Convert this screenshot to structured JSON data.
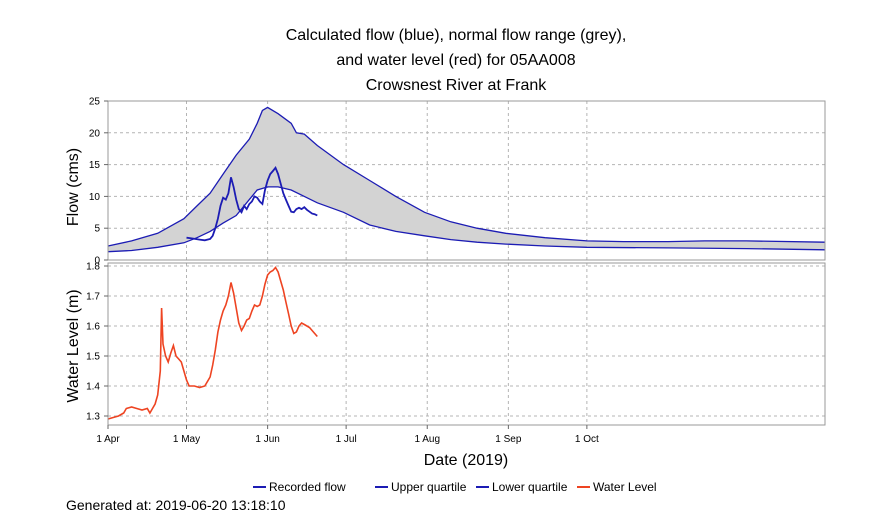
{
  "chart_data": [
    {
      "type": "area",
      "panel": "flow",
      "title_lines": [
        "Calculated flow (blue), normal flow range (grey),",
        "and water level (red) for 05AA008",
        "Crowsnest River at Frank"
      ],
      "xlabel": "Date (2019)",
      "ylabel": "Flow (cms)",
      "xlim": [
        "2019-04-01",
        "2019-12-31"
      ],
      "x_ticks": [
        "2019-04-01",
        "2019-05-01",
        "2019-06-01",
        "2019-07-01",
        "2019-08-01",
        "2019-09-01",
        "2019-10-01"
      ],
      "x_tick_labels": [
        "1 Apr",
        "1 May",
        "1 Jun",
        "1 Jul",
        "1 Aug",
        "1 Sep",
        "1 Oct"
      ],
      "ylim": [
        0,
        25
      ],
      "y_ticks": [
        0,
        5,
        10,
        15,
        20,
        25
      ],
      "grid": true,
      "legend_position": "bottom",
      "band_color": "#d3d3d3",
      "series": [
        {
          "name": "Upper quartile",
          "color": "#1c1cb4",
          "points": [
            [
              "2019-04-01",
              2.2
            ],
            [
              "2019-04-10",
              3.0
            ],
            [
              "2019-04-20",
              4.2
            ],
            [
              "2019-04-30",
              6.5
            ],
            [
              "2019-05-05",
              8.5
            ],
            [
              "2019-05-10",
              10.5
            ],
            [
              "2019-05-15",
              13.5
            ],
            [
              "2019-05-20",
              16.5
            ],
            [
              "2019-05-25",
              19.0
            ],
            [
              "2019-05-28",
              21.5
            ],
            [
              "2019-05-30",
              23.5
            ],
            [
              "2019-06-01",
              24.0
            ],
            [
              "2019-06-05",
              23.0
            ],
            [
              "2019-06-10",
              21.5
            ],
            [
              "2019-06-12",
              20.0
            ],
            [
              "2019-06-15",
              19.8
            ],
            [
              "2019-06-20",
              18.0
            ],
            [
              "2019-06-30",
              15.0
            ],
            [
              "2019-07-10",
              12.5
            ],
            [
              "2019-07-20",
              10.0
            ],
            [
              "2019-07-31",
              7.5
            ],
            [
              "2019-08-10",
              6.0
            ],
            [
              "2019-08-20",
              5.0
            ],
            [
              "2019-08-31",
              4.2
            ],
            [
              "2019-09-15",
              3.5
            ],
            [
              "2019-10-01",
              3.0
            ],
            [
              "2019-10-15",
              2.9
            ],
            [
              "2019-11-01",
              2.9
            ],
            [
              "2019-11-15",
              3.0
            ],
            [
              "2019-12-01",
              3.0
            ],
            [
              "2019-12-31",
              2.8
            ]
          ]
        },
        {
          "name": "Lower quartile",
          "color": "#1c1cb4",
          "points": [
            [
              "2019-04-01",
              1.3
            ],
            [
              "2019-04-10",
              1.5
            ],
            [
              "2019-04-20",
              2.0
            ],
            [
              "2019-04-30",
              2.7
            ],
            [
              "2019-05-05",
              3.5
            ],
            [
              "2019-05-10",
              4.5
            ],
            [
              "2019-05-15",
              5.8
            ],
            [
              "2019-05-20",
              7.0
            ],
            [
              "2019-05-25",
              9.5
            ],
            [
              "2019-05-28",
              11.0
            ],
            [
              "2019-06-01",
              11.5
            ],
            [
              "2019-06-05",
              11.5
            ],
            [
              "2019-06-10",
              11.0
            ],
            [
              "2019-06-15",
              10.0
            ],
            [
              "2019-06-20",
              9.0
            ],
            [
              "2019-06-30",
              7.5
            ],
            [
              "2019-07-10",
              5.5
            ],
            [
              "2019-07-20",
              4.5
            ],
            [
              "2019-07-31",
              3.8
            ],
            [
              "2019-08-10",
              3.2
            ],
            [
              "2019-08-20",
              2.8
            ],
            [
              "2019-08-31",
              2.5
            ],
            [
              "2019-09-15",
              2.2
            ],
            [
              "2019-10-01",
              2.0
            ],
            [
              "2019-11-01",
              1.9
            ],
            [
              "2019-12-01",
              1.8
            ],
            [
              "2019-12-31",
              1.6
            ]
          ]
        },
        {
          "name": "Recorded flow",
          "color": "#1c1cb4",
          "points": [
            [
              "2019-05-01",
              3.5
            ],
            [
              "2019-05-03",
              3.4
            ],
            [
              "2019-05-06",
              3.2
            ],
            [
              "2019-05-08",
              3.1
            ],
            [
              "2019-05-10",
              3.3
            ],
            [
              "2019-05-11",
              3.8
            ],
            [
              "2019-05-12",
              5.0
            ],
            [
              "2019-05-13",
              6.5
            ],
            [
              "2019-05-14",
              8.5
            ],
            [
              "2019-05-15",
              9.8
            ],
            [
              "2019-05-16",
              9.5
            ],
            [
              "2019-05-17",
              10.5
            ],
            [
              "2019-05-18",
              13.0
            ],
            [
              "2019-05-19",
              11.5
            ],
            [
              "2019-05-20",
              9.5
            ],
            [
              "2019-05-21",
              8.0
            ],
            [
              "2019-05-22",
              7.5
            ],
            [
              "2019-05-23",
              8.5
            ],
            [
              "2019-05-24",
              8.0
            ],
            [
              "2019-05-25",
              8.8
            ],
            [
              "2019-05-26",
              9.2
            ],
            [
              "2019-05-27",
              10.0
            ],
            [
              "2019-05-28",
              9.8
            ],
            [
              "2019-05-29",
              9.2
            ],
            [
              "2019-05-30",
              8.8
            ],
            [
              "2019-05-31",
              11.0
            ],
            [
              "2019-06-01",
              12.5
            ],
            [
              "2019-06-02",
              13.5
            ],
            [
              "2019-06-03",
              14.0
            ],
            [
              "2019-06-04",
              14.5
            ],
            [
              "2019-06-05",
              13.5
            ],
            [
              "2019-06-06",
              12.0
            ],
            [
              "2019-06-07",
              10.5
            ],
            [
              "2019-06-08",
              9.5
            ],
            [
              "2019-06-09",
              8.5
            ],
            [
              "2019-06-10",
              7.6
            ],
            [
              "2019-06-11",
              7.5
            ],
            [
              "2019-06-12",
              8.0
            ],
            [
              "2019-06-13",
              8.2
            ],
            [
              "2019-06-14",
              8.0
            ],
            [
              "2019-06-15",
              8.3
            ],
            [
              "2019-06-16",
              7.9
            ],
            [
              "2019-06-17",
              7.6
            ],
            [
              "2019-06-18",
              7.3
            ],
            [
              "2019-06-19",
              7.2
            ],
            [
              "2019-06-20",
              7.0
            ]
          ]
        }
      ]
    },
    {
      "type": "line",
      "panel": "water-level",
      "xlabel": "Date (2019)",
      "ylabel": "Water Level (m)",
      "xlim": [
        "2019-04-01",
        "2019-12-31"
      ],
      "ylim": [
        1.27,
        1.81
      ],
      "y_ticks": [
        1.3,
        1.4,
        1.5,
        1.6,
        1.7,
        1.8
      ],
      "grid": true,
      "series": [
        {
          "name": "Water Level",
          "color": "#ee4422",
          "points": [
            [
              "2019-04-01",
              1.29
            ],
            [
              "2019-04-03",
              1.295
            ],
            [
              "2019-04-05",
              1.3
            ],
            [
              "2019-04-07",
              1.31
            ],
            [
              "2019-04-08",
              1.325
            ],
            [
              "2019-04-10",
              1.33
            ],
            [
              "2019-04-12",
              1.325
            ],
            [
              "2019-04-14",
              1.32
            ],
            [
              "2019-04-16",
              1.325
            ],
            [
              "2019-04-17",
              1.31
            ],
            [
              "2019-04-18",
              1.325
            ],
            [
              "2019-04-19",
              1.34
            ],
            [
              "2019-04-20",
              1.37
            ],
            [
              "2019-04-21",
              1.45
            ],
            [
              "2019-04-21.5",
              1.66
            ],
            [
              "2019-04-22",
              1.54
            ],
            [
              "2019-04-23",
              1.5
            ],
            [
              "2019-04-24",
              1.48
            ],
            [
              "2019-04-25",
              1.51
            ],
            [
              "2019-04-26",
              1.535
            ],
            [
              "2019-04-27",
              1.5
            ],
            [
              "2019-04-28",
              1.49
            ],
            [
              "2019-04-29",
              1.48
            ],
            [
              "2019-04-30",
              1.45
            ],
            [
              "2019-05-01",
              1.42
            ],
            [
              "2019-05-02",
              1.4
            ],
            [
              "2019-05-04",
              1.4
            ],
            [
              "2019-05-06",
              1.395
            ],
            [
              "2019-05-08",
              1.4
            ],
            [
              "2019-05-10",
              1.43
            ],
            [
              "2019-05-11",
              1.47
            ],
            [
              "2019-05-12",
              1.52
            ],
            [
              "2019-05-13",
              1.58
            ],
            [
              "2019-05-14",
              1.62
            ],
            [
              "2019-05-15",
              1.65
            ],
            [
              "2019-05-16",
              1.67
            ],
            [
              "2019-05-17",
              1.7
            ],
            [
              "2019-05-18",
              1.745
            ],
            [
              "2019-05-19",
              1.71
            ],
            [
              "2019-05-20",
              1.66
            ],
            [
              "2019-05-21",
              1.61
            ],
            [
              "2019-05-22",
              1.585
            ],
            [
              "2019-05-23",
              1.6
            ],
            [
              "2019-05-24",
              1.62
            ],
            [
              "2019-05-25",
              1.625
            ],
            [
              "2019-05-26",
              1.65
            ],
            [
              "2019-05-27",
              1.67
            ],
            [
              "2019-05-28",
              1.665
            ],
            [
              "2019-05-29",
              1.67
            ],
            [
              "2019-05-30",
              1.7
            ],
            [
              "2019-05-31",
              1.74
            ],
            [
              "2019-06-01",
              1.77
            ],
            [
              "2019-06-02",
              1.78
            ],
            [
              "2019-06-03",
              1.785
            ],
            [
              "2019-06-04",
              1.795
            ],
            [
              "2019-06-05",
              1.78
            ],
            [
              "2019-06-06",
              1.75
            ],
            [
              "2019-06-07",
              1.72
            ],
            [
              "2019-06-08",
              1.68
            ],
            [
              "2019-06-09",
              1.64
            ],
            [
              "2019-06-10",
              1.6
            ],
            [
              "2019-06-11",
              1.575
            ],
            [
              "2019-06-12",
              1.58
            ],
            [
              "2019-06-13",
              1.6
            ],
            [
              "2019-06-14",
              1.61
            ],
            [
              "2019-06-15",
              1.605
            ],
            [
              "2019-06-16",
              1.6
            ],
            [
              "2019-06-17",
              1.595
            ],
            [
              "2019-06-18",
              1.585
            ],
            [
              "2019-06-19",
              1.575
            ],
            [
              "2019-06-20",
              1.565
            ]
          ]
        }
      ]
    }
  ],
  "footer": {
    "generated_label": "Generated at: 2019-06-20 13:18:10"
  }
}
